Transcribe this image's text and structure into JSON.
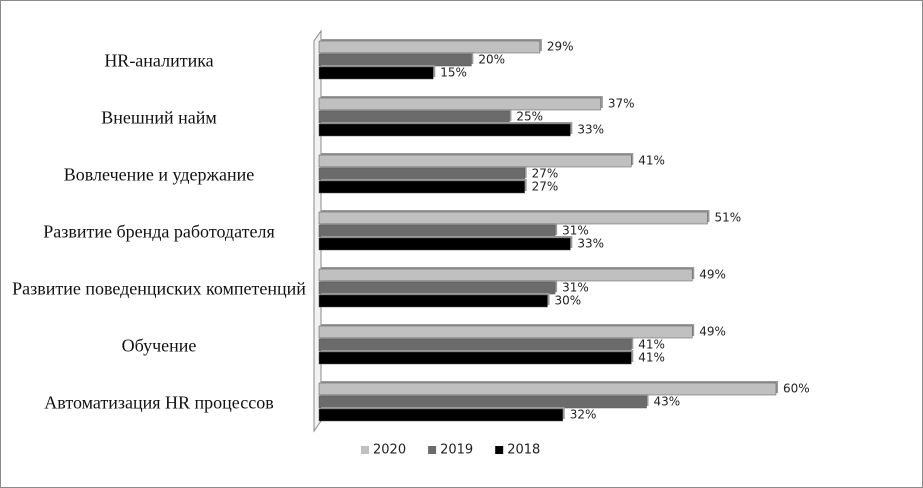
{
  "chart_data": {
    "type": "bar",
    "orientation": "horizontal",
    "categories": [
      "HR-аналитика",
      "Внешний найм",
      "Вовлечение и удержание",
      "Развитие бренда работодателя",
      "Развитие поведенциских компетенций",
      "Обучение",
      "Автоматизация HR процессов"
    ],
    "series": [
      {
        "name": "2020",
        "color": "#c0c0c0",
        "values": [
          29,
          37,
          41,
          51,
          49,
          49,
          60
        ],
        "value_labels": [
          "29%",
          "37%",
          "41%",
          "51%",
          "49%",
          "49%",
          "60%"
        ]
      },
      {
        "name": "2019",
        "color": "#6b6b6b",
        "values": [
          20,
          25,
          27,
          31,
          31,
          41,
          43
        ],
        "value_labels": [
          "20%",
          "25%",
          "27%",
          "31%",
          "31%",
          "41%",
          "43%"
        ]
      },
      {
        "name": "2018",
        "color": "#000000",
        "values": [
          15,
          33,
          27,
          33,
          30,
          41,
          32
        ],
        "value_labels": [
          "15%",
          "33%",
          "27%",
          "33%",
          "30%",
          "41%",
          "32%"
        ]
      }
    ],
    "legend": "bottom"
  }
}
